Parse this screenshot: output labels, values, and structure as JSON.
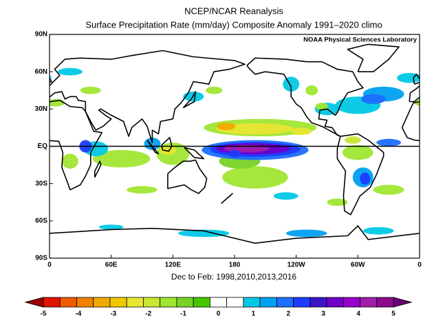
{
  "title": "NCEP/NCAR Reanalysis",
  "subtitle": "Surface Precipitation Rate (mm/day) Composite Anomaly 1991–2020 climo",
  "credit": "NOAA Physical Sciences Laboratory",
  "y_axis": {
    "labels": [
      "90N",
      "60N",
      "30N",
      "EQ",
      "30S",
      "60S",
      "90S"
    ]
  },
  "x_axis": {
    "labels": [
      "0",
      "60E",
      "120E",
      "180",
      "120W",
      "60W",
      "0"
    ]
  },
  "caption": "Dec to Feb: 1998,2010,2013,2016",
  "colorbar": {
    "labels": [
      -5,
      -4,
      -3,
      -2,
      -1,
      0,
      1,
      2,
      3,
      4,
      5
    ],
    "colors": [
      "#a00000",
      "#e11400",
      "#f05a00",
      "#f08200",
      "#f0aa00",
      "#f0c800",
      "#e6e632",
      "#c8e632",
      "#a0e632",
      "#78d228",
      "#46c800",
      "#ffffff",
      "#ffffff",
      "#00c8e6",
      "#00a0f0",
      "#1e6eff",
      "#1e3cff",
      "#3c14c8",
      "#6e00c8",
      "#9600c8",
      "#a01eaa",
      "#8c0a8c",
      "#6e0078"
    ]
  }
}
